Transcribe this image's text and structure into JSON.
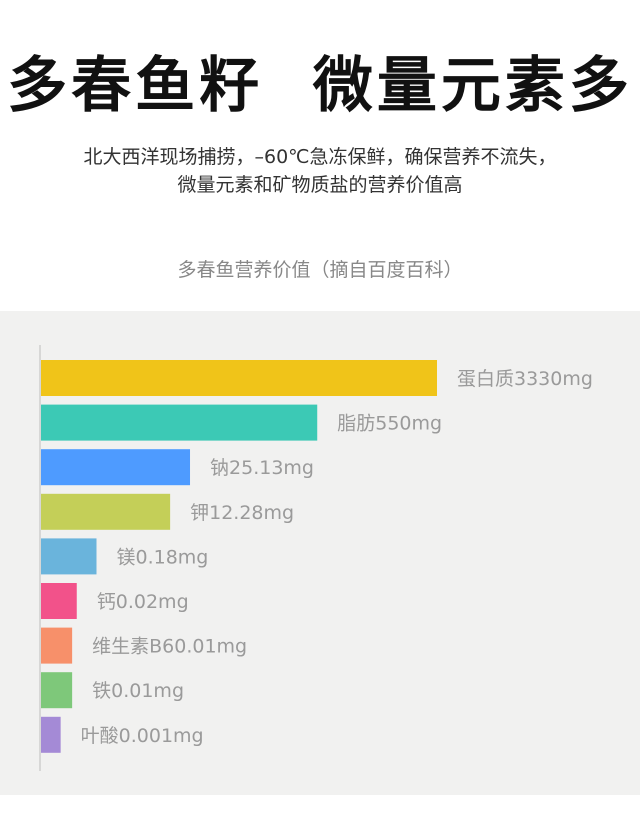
{
  "header": {
    "title": "多春鱼籽  微量元素多",
    "subtitle_line1": "北大西洋现场捕捞，–60℃急冻保鲜，确保营养不流失，",
    "subtitle_line2": "微量元素和矿物质盐的营养价值高"
  },
  "chart_caption": "多春鱼营养价值（摘自百度百科）",
  "chart_data": {
    "type": "bar",
    "orientation": "horizontal",
    "title": "多春鱼营养价值（摘自百度百科）",
    "categories": [
      "蛋白质",
      "脂肪",
      "钠",
      "钾",
      "镁",
      "钙",
      "维生素B6",
      "铁",
      "叶酸"
    ],
    "values": [
      3330,
      550,
      25.13,
      12.28,
      0.18,
      0.02,
      0.01,
      0.01,
      0.001
    ],
    "unit": "mg",
    "data_labels": [
      "蛋白质3330mg",
      "脂肪550mg",
      "钠25.13mg",
      "钾12.28mg",
      "镁0.18mg",
      "钙0.02mg",
      "维生素B60.01mg",
      "铁0.01mg",
      "叶酸0.001mg"
    ],
    "colors": [
      "#f0c419",
      "#3cc9b5",
      "#4e9bff",
      "#c4cf58",
      "#6ab4dc",
      "#f2528a",
      "#f7906a",
      "#7ec87a",
      "#a48ad6"
    ],
    "grid": false,
    "legend": "none",
    "scale": "non-linear"
  }
}
